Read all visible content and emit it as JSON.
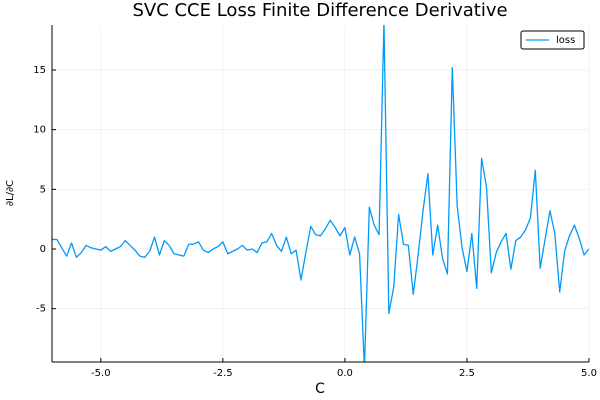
{
  "chart_data": {
    "type": "line",
    "title": "SVC CCE Loss Finite Difference Derivative",
    "xlabel": "C",
    "ylabel": "∂L/∂C",
    "x": [
      -6,
      -5.9,
      -5.8,
      -5.7,
      -5.6,
      -5.5,
      -5.4,
      -5.3,
      -5.2,
      -5.1,
      -5,
      -4.9,
      -4.8,
      -4.7,
      -4.6,
      -4.5,
      -4.4,
      -4.3,
      -4.2,
      -4.1,
      -4,
      -3.9,
      -3.8,
      -3.7,
      -3.6,
      -3.5,
      -3.4,
      -3.3,
      -3.2,
      -3.1,
      -3,
      -2.9,
      -2.8,
      -2.7,
      -2.6,
      -2.5,
      -2.4,
      -2.3,
      -2.2,
      -2.1,
      -2,
      -1.9,
      -1.8,
      -1.7,
      -1.6,
      -1.5,
      -1.4,
      -1.3,
      -1.2,
      -1.1,
      -1,
      -0.9,
      -0.8,
      -0.7,
      -0.6,
      -0.5,
      -0.4,
      -0.3,
      -0.2,
      -0.1,
      0,
      0.1,
      0.2,
      0.3,
      0.4,
      0.5,
      0.6,
      0.7,
      0.8,
      0.9,
      1,
      1.1,
      1.2,
      1.3,
      1.4,
      1.5,
      1.6,
      1.7,
      1.8,
      1.9,
      2,
      2.1,
      2.2,
      2.3,
      2.4,
      2.5,
      2.6,
      2.7,
      2.8,
      2.9,
      3,
      3.1,
      3.2,
      3.3,
      3.4,
      3.5,
      3.6,
      3.7,
      3.8,
      3.9,
      4,
      4.1,
      4.2,
      4.3,
      4.4,
      4.5,
      4.6,
      4.7,
      4.8,
      4.9,
      5
    ],
    "series": [
      {
        "name": "loss",
        "color": "#009af9",
        "values": [
          0.8,
          0.8,
          0.1,
          -0.6,
          0.5,
          -0.7,
          -0.3,
          0.3,
          0.1,
          0,
          -0.1,
          0.2,
          -0.2,
          0,
          0.2,
          0.7,
          0.3,
          -0.1,
          -0.6,
          -0.7,
          -0.2,
          1,
          -0.5,
          0.7,
          0.3,
          -0.4,
          -0.5,
          -0.6,
          0.4,
          0.4,
          0.6,
          -0.1,
          -0.3,
          0,
          0.2,
          0.6,
          -0.4,
          -0.2,
          0,
          0.3,
          -0.1,
          0,
          -0.3,
          0.5,
          0.6,
          1.3,
          0.3,
          -0.2,
          1,
          -0.4,
          -0.1,
          -2.6,
          -0.3,
          1.9,
          1.2,
          1.1,
          1.7,
          2.4,
          1.8,
          1.1,
          1.8,
          -0.5,
          1,
          -0.4,
          -10,
          3.5,
          2,
          1.2,
          19,
          -5.4,
          -3.2,
          2.9,
          0.4,
          0.3,
          -3.8,
          -0.5,
          3.2,
          6.3,
          -0.5,
          2,
          -0.8,
          -2.1,
          15.2,
          3.6,
          0.1,
          -1.9,
          1.3,
          -3.3,
          7.6,
          5.2,
          -2,
          -0.3,
          0.6,
          1.3,
          -1.7,
          0.7,
          1,
          1.6,
          2.6,
          6.6,
          -1.6,
          0.8,
          3.2,
          1.3,
          -3.6,
          -0.2,
          1.1,
          2,
          0.9,
          -0.5,
          0
        ]
      }
    ],
    "xlim": [
      -6,
      5
    ],
    "xticks": [
      {
        "value": -5,
        "label": "-5.0"
      },
      {
        "value": -2.5,
        "label": "-2.5"
      },
      {
        "value": 0,
        "label": "0.0"
      },
      {
        "value": 2.5,
        "label": "2.5"
      },
      {
        "value": 5,
        "label": "5.0"
      }
    ],
    "ylim": [
      -9.47,
      18.77
    ],
    "yticks": [
      -5,
      0,
      5,
      10,
      15
    ],
    "grid": true,
    "legend": "top-right"
  }
}
